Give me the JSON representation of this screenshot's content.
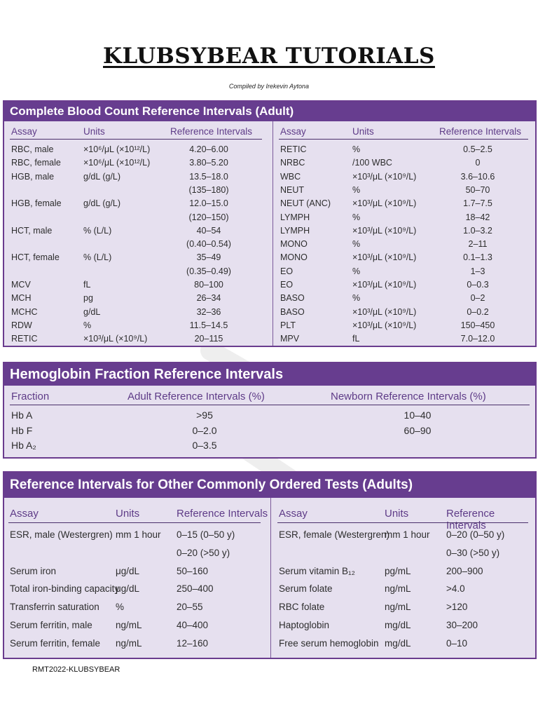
{
  "title": "KLUBSYBEAR TUTORIALS",
  "subtitle": "Compiled by Irekevin Aytona",
  "footer": "RMT2022-KLUBSYBEAR",
  "colors": {
    "header_bg": "#673d8f",
    "panel_bg": "#e6e0ef",
    "heading_text": "#5e3b87"
  },
  "cbc": {
    "title": "Complete Blood Count Reference Intervals (Adult)",
    "headers": [
      "Assay",
      "Units",
      "Reference Intervals"
    ],
    "left_rows": [
      [
        "RBC, male",
        "×10⁶/μL (×10¹²/L)",
        "4.20–6.00"
      ],
      [
        "RBC, female",
        "×10⁶/μL (×10¹²/L)",
        "3.80–5.20"
      ],
      [
        "HGB, male",
        "g/dL (g/L)",
        "13.5–18.0"
      ],
      [
        "",
        "",
        "(135–180)"
      ],
      [
        "HGB, female",
        "g/dL (g/L)",
        "12.0–15.0"
      ],
      [
        "",
        "",
        "(120–150)"
      ],
      [
        "HCT, male",
        "% (L/L)",
        "40–54"
      ],
      [
        "",
        "",
        "(0.40–0.54)"
      ],
      [
        "HCT, female",
        "% (L/L)",
        "35–49"
      ],
      [
        "",
        "",
        "(0.35–0.49)"
      ],
      [
        "MCV",
        "fL",
        "80–100"
      ],
      [
        "MCH",
        "pg",
        "26–34"
      ],
      [
        "MCHC",
        "g/dL",
        "32–36"
      ],
      [
        "RDW",
        "%",
        "11.5–14.5"
      ],
      [
        "RETIC",
        "×10³/μL (×10⁹/L)",
        "20–115"
      ]
    ],
    "right_rows": [
      [
        "RETIC",
        "%",
        "0.5–2.5"
      ],
      [
        "NRBC",
        "/100 WBC",
        "0"
      ],
      [
        "WBC",
        "×10³/μL (×10⁹/L)",
        "3.6–10.6"
      ],
      [
        "NEUT",
        "%",
        "50–70"
      ],
      [
        "NEUT (ANC)",
        "×10³/μL (×10⁹/L)",
        "1.7–7.5"
      ],
      [
        "LYMPH",
        "%",
        "18–42"
      ],
      [
        "LYMPH",
        "×10³/μL (×10⁹/L)",
        "1.0–3.2"
      ],
      [
        "MONO",
        "%",
        "2–11"
      ],
      [
        "MONO",
        "×10³/μL (×10⁹/L)",
        "0.1–1.3"
      ],
      [
        "EO",
        "%",
        "1–3"
      ],
      [
        "EO",
        "×10³/μL (×10⁹/L)",
        "0–0.3"
      ],
      [
        "BASO",
        "%",
        "0–2"
      ],
      [
        "BASO",
        "×10³/μL (×10⁹/L)",
        "0–0.2"
      ],
      [
        "PLT",
        "×10³/μL (×10⁹/L)",
        "150–450"
      ],
      [
        "MPV",
        "fL",
        "7.0–12.0"
      ]
    ]
  },
  "hb": {
    "title": "Hemoglobin Fraction Reference Intervals",
    "headers": [
      "Fraction",
      "Adult Reference Intervals (%)",
      "Newborn Reference Intervals (%)"
    ],
    "rows": [
      [
        "Hb A",
        ">95",
        "10–40"
      ],
      [
        "Hb F",
        "0–2.0",
        "60–90"
      ],
      [
        "Hb A₂",
        "0–3.5",
        ""
      ]
    ]
  },
  "other": {
    "title": "Reference Intervals for Other Commonly Ordered Tests (Adults)",
    "headers": [
      "Assay",
      "Units",
      "Reference Intervals"
    ],
    "left_rows": [
      [
        "ESR, male (Westergren)",
        "mm 1 hour",
        "0–15 (0–50 y)"
      ],
      [
        "",
        "",
        "0–20 (>50 y)"
      ],
      [
        "Serum iron",
        "μg/dL",
        "50–160"
      ],
      [
        "Total iron-binding capacity",
        "μg/dL",
        "250–400"
      ],
      [
        "Transferrin saturation",
        "%",
        "20–55"
      ],
      [
        "Serum ferritin, male",
        "ng/mL",
        "40–400"
      ],
      [
        "Serum ferritin, female",
        "ng/mL",
        "12–160"
      ]
    ],
    "right_rows": [
      [
        "ESR, female (Westergren)",
        "mm 1 hour",
        "0–20 (0–50 y)"
      ],
      [
        "",
        "",
        "0–30 (>50 y)"
      ],
      [
        "Serum vitamin B₁₂",
        "pg/mL",
        "200–900"
      ],
      [
        "Serum folate",
        "ng/mL",
        ">4.0"
      ],
      [
        "RBC folate",
        "ng/mL",
        ">120"
      ],
      [
        "Haptoglobin",
        "mg/dL",
        "30–200"
      ],
      [
        "Free serum hemoglobin",
        "mg/dL",
        "0–10"
      ]
    ]
  }
}
